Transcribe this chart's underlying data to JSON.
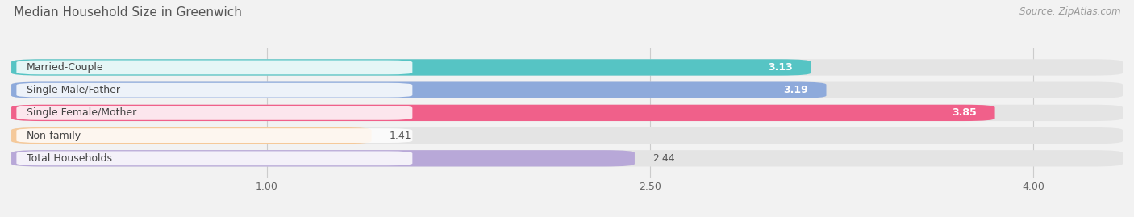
{
  "title": "Median Household Size in Greenwich",
  "source": "Source: ZipAtlas.com",
  "categories": [
    "Married-Couple",
    "Single Male/Father",
    "Single Female/Mother",
    "Non-family",
    "Total Households"
  ],
  "values": [
    3.13,
    3.19,
    3.85,
    1.41,
    2.44
  ],
  "bar_colors": [
    "#56c4c4",
    "#8eaadb",
    "#f0608a",
    "#f5c99a",
    "#b8a8d8"
  ],
  "value_labels": [
    "3.13",
    "3.19",
    "3.85",
    "1.41",
    "2.44"
  ],
  "value_inside": [
    true,
    true,
    true,
    false,
    false
  ],
  "xlim_left": 0.0,
  "xlim_right": 4.35,
  "data_min": 0.0,
  "data_max": 4.0,
  "xticks": [
    1.0,
    2.5,
    4.0
  ],
  "xticklabels": [
    "1.00",
    "2.50",
    "4.00"
  ],
  "title_fontsize": 11,
  "source_fontsize": 8.5,
  "label_fontsize": 9,
  "value_fontsize": 9,
  "background_color": "#f2f2f2",
  "bar_bg_color": "#e4e4e4",
  "bar_height": 0.72,
  "bar_gap": 0.28
}
